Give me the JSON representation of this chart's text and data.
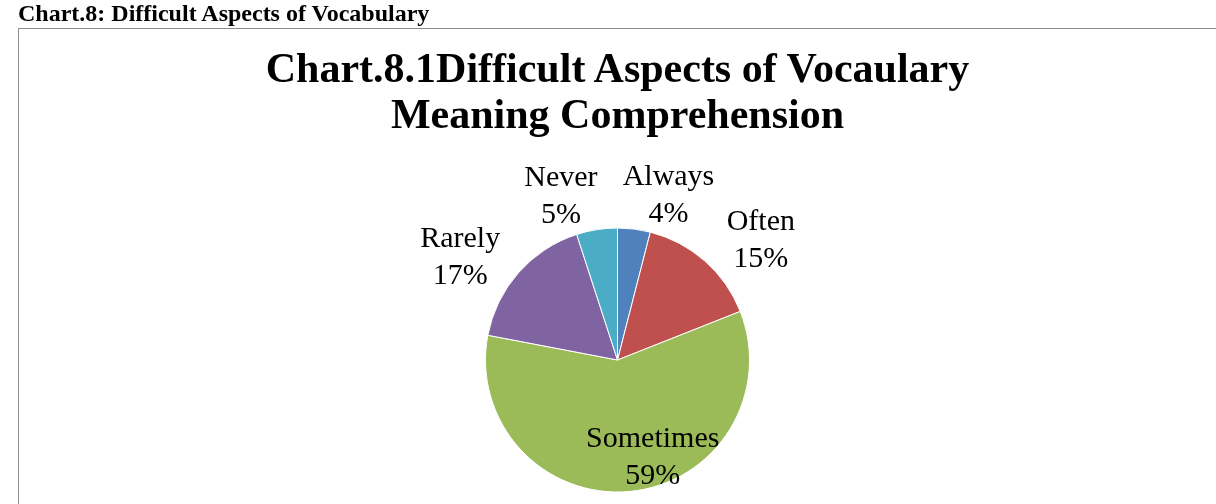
{
  "chart_data": {
    "type": "pie",
    "title": "Chart.8.1Difficult Aspects of Vocaulary Meaning Comprehension",
    "annotations": [
      "Chart.8: Difficult Aspects of Vocabulary"
    ],
    "categories": [
      "Always",
      "Often",
      "Sometimes",
      "Rarely",
      "Never"
    ],
    "values": [
      4,
      15,
      59,
      17,
      5
    ],
    "value_labels": [
      "4%",
      "15%",
      "59%",
      "17%",
      "5%"
    ],
    "colors": [
      "#4f81bd",
      "#c0504d",
      "#9bbb59",
      "#8064a2",
      "#4bacc6"
    ]
  }
}
